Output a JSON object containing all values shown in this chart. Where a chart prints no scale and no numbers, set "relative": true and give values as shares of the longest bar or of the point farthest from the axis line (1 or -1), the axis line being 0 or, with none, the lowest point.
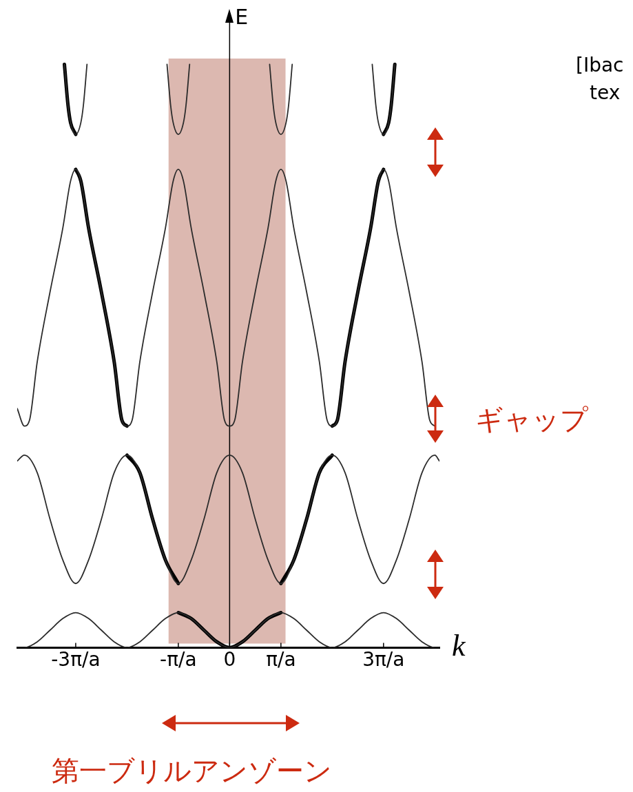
{
  "chart_data": {
    "type": "line",
    "relative": true,
    "xlabel": "k",
    "ylabel": "E",
    "xlim": [
      -4.14,
      4.09
    ],
    "xticks": [
      {
        "value": -3,
        "label": "-3π/a"
      },
      {
        "value": -1,
        "label": "-π/a"
      },
      0,
      {
        "value": 1,
        "label": "π/a"
      },
      {
        "value": 3,
        "label": "3π/a"
      }
    ],
    "bands": [
      {
        "axis": "x",
        "from": -1.19,
        "to": 1.09,
        "color": "#dcb8b0"
      }
    ],
    "legend": false,
    "marker": "none",
    "line_style": "solid",
    "annotations": [
      "ギャップ",
      "第一ブリルアンゾーン",
      "[Ibac",
      "tex"
    ],
    "series": [
      {
        "color": "#2b2b2b",
        "x": [
          -4.14,
          -4,
          -3.75,
          -3.5,
          -3.25,
          -3,
          -2.75,
          -2.5,
          -2.25,
          -2,
          -1.75,
          -1.5,
          -1.25,
          -1,
          -0.75,
          -0.5,
          -0.25,
          0,
          0.25,
          0.5,
          0.75,
          1,
          1.25,
          1.5,
          1.75,
          2,
          2.25,
          2.5,
          2.75,
          3,
          3.25,
          3.5,
          3.75,
          4,
          4.09
        ],
        "values": [
          0,
          0,
          0.01,
          0.03,
          0.05,
          0.06,
          0.05,
          0.03,
          0.01,
          0,
          0.01,
          0.03,
          0.05,
          0.06,
          0.05,
          0.03,
          0.01,
          0,
          0.01,
          0.03,
          0.05,
          0.06,
          0.05,
          0.03,
          0.01,
          0,
          0.01,
          0.03,
          0.05,
          0.06,
          0.05,
          0.03,
          0.01,
          0,
          0
        ]
      },
      {
        "color": "#2b2b2b",
        "x": [
          -4.14,
          -4,
          -3.75,
          -3.5,
          -3.25,
          -3,
          -2.75,
          -2.5,
          -2.25,
          -2,
          -1.75,
          -1.5,
          -1.25,
          -1,
          -0.75,
          -0.5,
          -0.25,
          0,
          0.25,
          0.5,
          0.75,
          1,
          1.25,
          1.5,
          1.75,
          2,
          2.25,
          2.5,
          2.75,
          3,
          3.25,
          3.5,
          3.75,
          4,
          4.09
        ],
        "values": [
          0.32,
          0.33,
          0.3,
          0.22,
          0.15,
          0.11,
          0.15,
          0.22,
          0.3,
          0.33,
          0.3,
          0.22,
          0.15,
          0.11,
          0.15,
          0.22,
          0.3,
          0.33,
          0.3,
          0.22,
          0.15,
          0.11,
          0.15,
          0.22,
          0.3,
          0.33,
          0.3,
          0.22,
          0.15,
          0.11,
          0.15,
          0.22,
          0.3,
          0.33,
          0.32
        ]
      },
      {
        "color": "#2b2b2b",
        "x": [
          -4.14,
          -4,
          -3.9,
          -3.75,
          -3.5,
          -3.25,
          -3.1,
          -3,
          -2.9,
          -2.75,
          -2.5,
          -2.25,
          -2.1,
          -2,
          -1.9,
          -1.75,
          -1.5,
          -1.25,
          -1.1,
          -1,
          -0.9,
          -0.75,
          -0.5,
          -0.25,
          -0.1,
          0,
          0.1,
          0.25,
          0.5,
          0.75,
          0.9,
          1,
          1.1,
          1.25,
          1.5,
          1.75,
          1.9,
          2,
          2.1,
          2.25,
          2.5,
          2.75,
          2.9,
          3,
          3.1,
          3.25,
          3.5,
          3.75,
          3.9,
          4
        ],
        "values": [
          0.41,
          0.38,
          0.39,
          0.49,
          0.61,
          0.72,
          0.8,
          0.82,
          0.8,
          0.72,
          0.61,
          0.49,
          0.39,
          0.38,
          0.39,
          0.49,
          0.61,
          0.72,
          0.8,
          0.82,
          0.8,
          0.72,
          0.61,
          0.49,
          0.39,
          0.38,
          0.39,
          0.49,
          0.61,
          0.72,
          0.8,
          0.82,
          0.8,
          0.72,
          0.61,
          0.49,
          0.39,
          0.38,
          0.39,
          0.49,
          0.61,
          0.72,
          0.8,
          0.82,
          0.8,
          0.72,
          0.61,
          0.49,
          0.39,
          0.38
        ]
      },
      {
        "color": "#2b2b2b",
        "x": [
          -3.22,
          -3.15,
          -3.1,
          -3,
          -2.9,
          -2.85,
          -2.78,
          -2,
          -1.22,
          -1.15,
          -1.1,
          -1,
          -0.9,
          -0.85,
          -0.78,
          0,
          0.78,
          0.85,
          0.9,
          1,
          1.1,
          1.15,
          1.22,
          2,
          2.78,
          2.85,
          2.9,
          3,
          3.1,
          3.15,
          3.22
        ],
        "values": [
          1,
          0.93,
          0.9,
          0.88,
          0.9,
          0.93,
          1,
          null,
          1,
          0.93,
          0.9,
          0.88,
          0.9,
          0.93,
          1,
          null,
          1,
          0.93,
          0.9,
          0.88,
          0.9,
          0.93,
          1,
          null,
          1,
          0.93,
          0.9,
          0.88,
          0.9,
          0.93,
          1
        ]
      },
      {
        "color": "#000000",
        "x": [
          -3.22,
          -3.15,
          -3.1,
          -3
        ],
        "values": [
          1,
          0.93,
          0.9,
          0.88
        ]
      },
      {
        "color": "#000000",
        "x": [
          -3,
          -2.9,
          -2.75,
          -2.5,
          -2.25,
          -2.1,
          -2
        ],
        "values": [
          0.82,
          0.8,
          0.72,
          0.61,
          0.49,
          0.39,
          0.38
        ]
      },
      {
        "color": "#000000",
        "x": [
          -2,
          -1.75,
          -1.5,
          -1.25,
          -1
        ],
        "values": [
          0.33,
          0.3,
          0.22,
          0.15,
          0.11
        ]
      },
      {
        "color": "#000000",
        "x": [
          -1,
          -0.75,
          -0.5,
          -0.25,
          0,
          0.25,
          0.5,
          0.75,
          1
        ],
        "values": [
          0.06,
          0.05,
          0.03,
          0.01,
          0,
          0.01,
          0.03,
          0.05,
          0.06
        ]
      },
      {
        "color": "#000000",
        "x": [
          1,
          1.25,
          1.5,
          1.75,
          2
        ],
        "values": [
          0.11,
          0.15,
          0.22,
          0.3,
          0.33
        ]
      },
      {
        "color": "#000000",
        "x": [
          2,
          2.1,
          2.25,
          2.5,
          2.75,
          2.9,
          3
        ],
        "values": [
          0.38,
          0.39,
          0.49,
          0.61,
          0.72,
          0.8,
          0.82
        ]
      },
      {
        "color": "#000000",
        "x": [
          3,
          3.1,
          3.15,
          3.22
        ],
        "values": [
          0.88,
          0.9,
          0.93,
          1
        ]
      }
    ]
  }
}
